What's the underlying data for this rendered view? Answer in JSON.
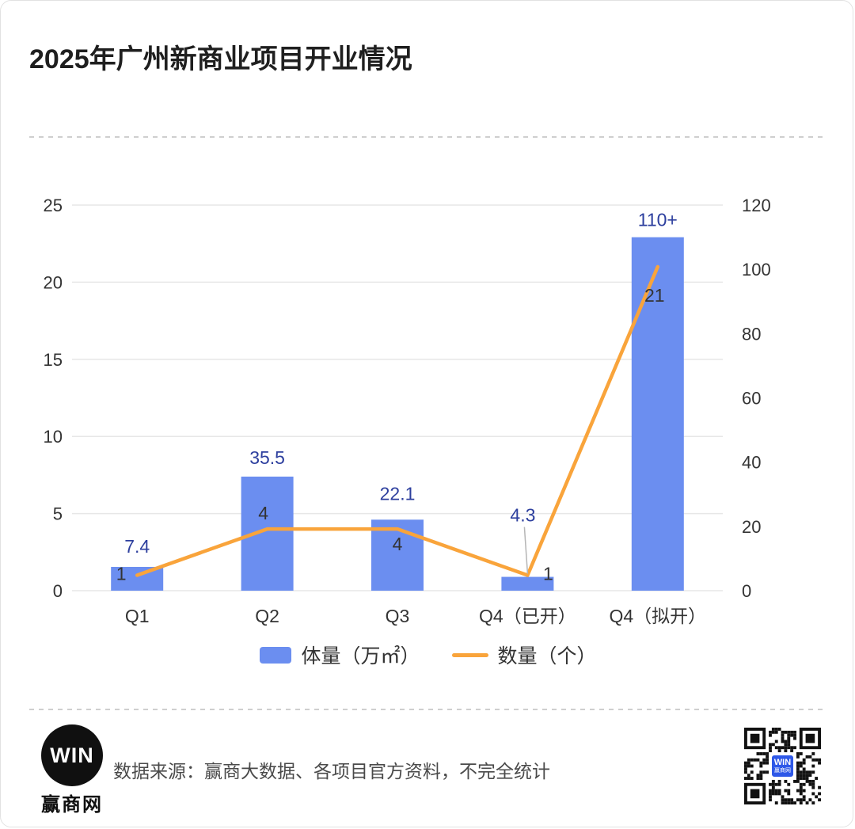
{
  "title": "2025年广州新商业项目开业情况",
  "colors": {
    "bar": "#6b8ef0",
    "line": "#f9a43b",
    "bar_label": "#2d3f9e",
    "line_label": "#333333",
    "axis_text": "#333333",
    "grid": "#e7e7e7",
    "leader": "#b5b5b5",
    "qr_logo": "#2e58e8"
  },
  "chart_data": {
    "type": "bar+line",
    "categories": [
      "Q1",
      "Q2",
      "Q3",
      "Q4（已开）",
      "Q4（拟开）"
    ],
    "series": [
      {
        "name": "体量（万㎡）",
        "type": "bar",
        "axis": "right",
        "values": [
          7.4,
          35.5,
          22.1,
          4.3,
          110
        ],
        "labels": [
          "7.4",
          "35.5",
          "22.1",
          "4.3",
          "110+"
        ],
        "label_offsets": [
          [
            0,
            -18
          ],
          [
            0,
            -16
          ],
          [
            0,
            -25
          ],
          [
            -6,
            -70
          ],
          [
            0,
            -14
          ]
        ],
        "label_leader": [
          false,
          false,
          false,
          true,
          false
        ]
      },
      {
        "name": "数量（个）",
        "type": "line",
        "axis": "left",
        "values": [
          1,
          4,
          4,
          1,
          21
        ],
        "labels": [
          "1",
          "4",
          "4",
          "1",
          "21"
        ],
        "label_offsets": [
          [
            -20,
            6
          ],
          [
            -5,
            -12
          ],
          [
            0,
            27
          ],
          [
            26,
            6
          ],
          [
            -4,
            44
          ]
        ]
      }
    ],
    "left_axis": {
      "min": 0,
      "max": 25,
      "ticks": [
        0,
        5,
        10,
        15,
        20,
        25
      ]
    },
    "right_axis": {
      "min": 0,
      "max": 120,
      "ticks": [
        0,
        20,
        40,
        60,
        80,
        100,
        120
      ]
    },
    "grid": true,
    "legend_position": "bottom"
  },
  "legend": {
    "bar_label": "体量（万㎡）",
    "line_label": "数量（个）"
  },
  "footer": {
    "logo_main": "WIN",
    "logo_sub": "赢商网",
    "source": "数据来源：赢商大数据、各项目官方资料，不完全统计",
    "qr_logo_line1": "WIN",
    "qr_logo_line2": "赢商网"
  }
}
